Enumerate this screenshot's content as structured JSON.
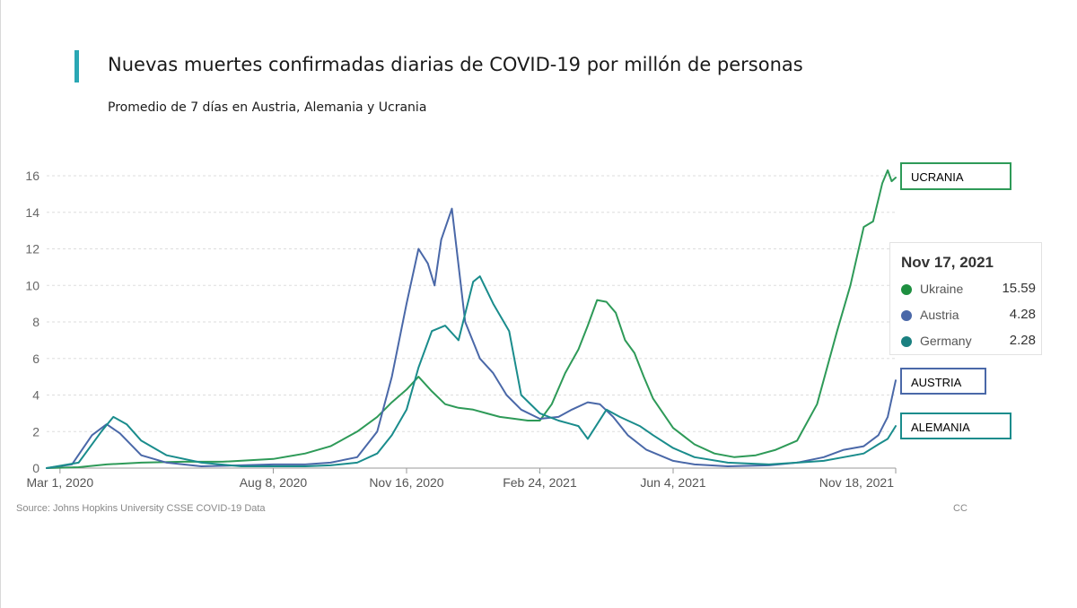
{
  "header": {
    "title": "Nuevas muertes confirmadas diarias de COVID-19 por millón de personas",
    "subtitle": "Promedio de 7 días en Austria, Alemania y Ucrania"
  },
  "chart_data": {
    "type": "line",
    "title": "Nuevas muertes confirmadas diarias de COVID-19 por millón de personas",
    "subtitle": "Promedio de 7 días en Austria, Alemania y Ucrania",
    "xlabel": "",
    "ylabel": "",
    "ylim": [
      0,
      16
    ],
    "y_ticks": [
      "0",
      "2",
      "4",
      "6",
      "8",
      "10",
      "12",
      "14",
      "16"
    ],
    "x_ticks": [
      "Mar 1, 2020",
      "Aug 8, 2020",
      "Nov 16, 2020",
      "Feb 24, 2021",
      "Jun 4, 2021",
      "Nov 18, 2021"
    ],
    "x_range": [
      "2020-02-20",
      "2021-11-18"
    ],
    "grid": "horizontal dashed",
    "source": "Source: Johns Hopkins University CSSE COVID-19 Data",
    "source_right": "CC",
    "series": [
      {
        "name": "Ukraine",
        "color": "#2e9a58",
        "x": [
          "2020-02-20",
          "2020-03-15",
          "2020-04-05",
          "2020-05-01",
          "2020-06-01",
          "2020-07-01",
          "2020-08-08",
          "2020-09-01",
          "2020-09-20",
          "2020-10-10",
          "2020-10-25",
          "2020-11-05",
          "2020-11-16",
          "2020-11-25",
          "2020-12-05",
          "2020-12-15",
          "2020-12-25",
          "2021-01-05",
          "2021-01-15",
          "2021-01-25",
          "2021-02-05",
          "2021-02-15",
          "2021-02-24",
          "2021-03-05",
          "2021-03-15",
          "2021-03-25",
          "2021-04-01",
          "2021-04-08",
          "2021-04-15",
          "2021-04-22",
          "2021-04-29",
          "2021-05-06",
          "2021-05-13",
          "2021-05-20",
          "2021-06-04",
          "2021-06-20",
          "2021-07-05",
          "2021-07-20",
          "2021-08-05",
          "2021-08-20",
          "2021-09-05",
          "2021-09-20",
          "2021-10-05",
          "2021-10-15",
          "2021-10-25",
          "2021-11-01",
          "2021-11-08",
          "2021-11-12",
          "2021-11-15",
          "2021-11-18"
        ],
        "values": [
          0,
          0.05,
          0.2,
          0.3,
          0.35,
          0.35,
          0.5,
          0.8,
          1.2,
          2.0,
          2.8,
          3.6,
          4.3,
          5.0,
          4.2,
          3.5,
          3.3,
          3.2,
          3.0,
          2.8,
          2.7,
          2.6,
          2.6,
          3.5,
          5.2,
          6.5,
          7.8,
          9.2,
          9.1,
          8.5,
          7.0,
          6.3,
          5.0,
          3.8,
          2.2,
          1.3,
          0.8,
          0.6,
          0.7,
          1.0,
          1.5,
          3.5,
          7.5,
          10.0,
          13.2,
          13.5,
          15.6,
          16.3,
          15.7,
          15.9
        ]
      },
      {
        "name": "Austria",
        "color": "#4a68a8",
        "x": [
          "2020-02-20",
          "2020-03-10",
          "2020-03-25",
          "2020-04-05",
          "2020-04-15",
          "2020-05-01",
          "2020-05-20",
          "2020-06-15",
          "2020-07-15",
          "2020-08-08",
          "2020-09-01",
          "2020-09-20",
          "2020-10-10",
          "2020-10-25",
          "2020-11-05",
          "2020-11-16",
          "2020-11-25",
          "2020-12-02",
          "2020-12-07",
          "2020-12-12",
          "2020-12-20",
          "2020-12-30",
          "2021-01-10",
          "2021-01-20",
          "2021-01-30",
          "2021-02-10",
          "2021-02-24",
          "2021-03-10",
          "2021-03-20",
          "2021-04-01",
          "2021-04-10",
          "2021-04-20",
          "2021-05-01",
          "2021-05-15",
          "2021-06-04",
          "2021-06-20",
          "2021-07-15",
          "2021-08-15",
          "2021-09-05",
          "2021-09-25",
          "2021-10-10",
          "2021-10-25",
          "2021-11-05",
          "2021-11-12",
          "2021-11-18"
        ],
        "values": [
          0,
          0.2,
          1.8,
          2.4,
          1.9,
          0.7,
          0.3,
          0.1,
          0.15,
          0.2,
          0.2,
          0.3,
          0.6,
          2.0,
          5.0,
          9.0,
          12.0,
          11.2,
          10.0,
          12.5,
          14.2,
          8.0,
          6.0,
          5.2,
          4.0,
          3.2,
          2.7,
          2.8,
          3.2,
          3.6,
          3.5,
          2.8,
          1.8,
          1.0,
          0.4,
          0.2,
          0.1,
          0.15,
          0.3,
          0.6,
          1.0,
          1.2,
          1.8,
          2.8,
          4.8
        ]
      },
      {
        "name": "Germany",
        "color": "#1a8c8c",
        "x": [
          "2020-02-20",
          "2020-03-15",
          "2020-04-01",
          "2020-04-10",
          "2020-04-20",
          "2020-05-01",
          "2020-05-20",
          "2020-06-15",
          "2020-07-15",
          "2020-08-08",
          "2020-09-01",
          "2020-09-20",
          "2020-10-10",
          "2020-10-25",
          "2020-11-05",
          "2020-11-16",
          "2020-11-25",
          "2020-12-05",
          "2020-12-15",
          "2020-12-25",
          "2021-01-05",
          "2021-01-10",
          "2021-01-20",
          "2021-02-01",
          "2021-02-10",
          "2021-02-24",
          "2021-03-10",
          "2021-03-25",
          "2021-04-01",
          "2021-04-15",
          "2021-04-25",
          "2021-05-10",
          "2021-05-20",
          "2021-06-04",
          "2021-06-20",
          "2021-07-15",
          "2021-08-15",
          "2021-09-05",
          "2021-09-25",
          "2021-10-10",
          "2021-10-25",
          "2021-11-05",
          "2021-11-12",
          "2021-11-18"
        ],
        "values": [
          0,
          0.3,
          2.0,
          2.8,
          2.4,
          1.5,
          0.7,
          0.3,
          0.1,
          0.1,
          0.1,
          0.15,
          0.3,
          0.8,
          1.8,
          3.2,
          5.5,
          7.5,
          7.8,
          7.0,
          10.2,
          10.5,
          9.0,
          7.5,
          4.0,
          3.0,
          2.6,
          2.3,
          1.6,
          3.2,
          2.8,
          2.3,
          1.8,
          1.1,
          0.6,
          0.3,
          0.2,
          0.3,
          0.4,
          0.6,
          0.8,
          1.3,
          1.6,
          2.3
        ]
      }
    ],
    "tooltip": {
      "date": "Nov 17, 2021",
      "rows": [
        {
          "name": "Ukraine",
          "value": "15.59",
          "color": "#1e8f40"
        },
        {
          "name": "Austria",
          "value": "4.28",
          "color": "#4a68a8"
        },
        {
          "name": "Germany",
          "value": "2.28",
          "color": "#1a8080"
        }
      ]
    },
    "annotations": [
      {
        "text": "UCRANIA",
        "series": "Ukraine"
      },
      {
        "text": "AUSTRIA",
        "series": "Austria"
      },
      {
        "text": "ALEMANIA",
        "series": "Germany"
      }
    ]
  }
}
